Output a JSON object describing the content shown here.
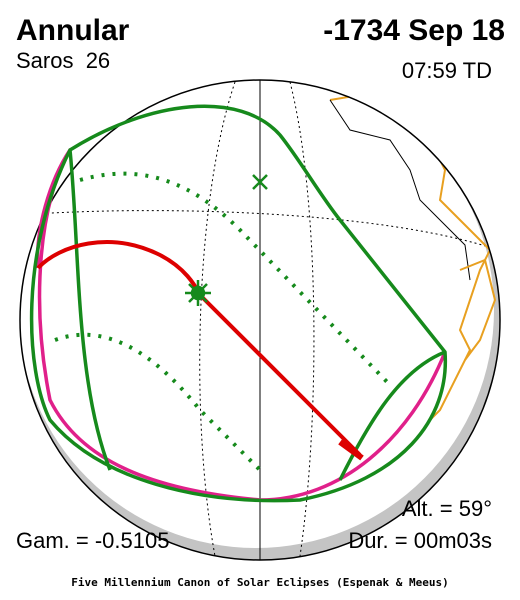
{
  "header": {
    "type": "Annular",
    "date": "-1734 Sep 18",
    "saros": "Saros  26",
    "time": "07:59 TD"
  },
  "stats": {
    "altitude": "Alt. = 59°",
    "gamma": "Gam. = -0.5105",
    "duration": "Dur. = 00m03s"
  },
  "footer": {
    "credit": "Five Millennium Canon of Solar Eclipses (Espenak & Meeus)"
  }
}
